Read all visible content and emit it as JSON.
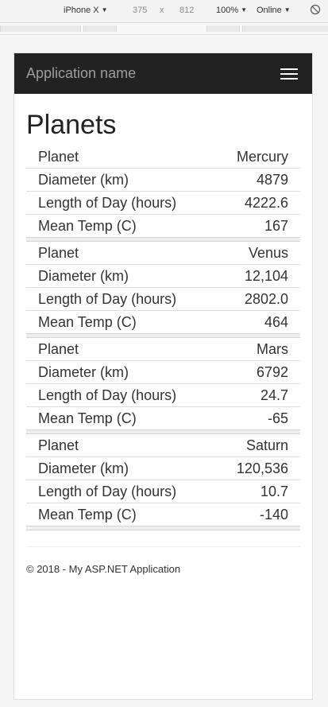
{
  "devtools": {
    "device": "iPhone X",
    "width": "375",
    "times": "x",
    "height": "812",
    "zoom": "100%",
    "network": "Online"
  },
  "app": {
    "brand": "Application name"
  },
  "page": {
    "title": "Planets"
  },
  "row_labels": {
    "planet": "Planet",
    "diameter": "Diameter (km)",
    "day": "Length of Day (hours)",
    "temp": "Mean Temp (C)"
  },
  "planets": [
    {
      "name": "Mercury",
      "diameter": "4879",
      "day": "4222.6",
      "temp": "167"
    },
    {
      "name": "Venus",
      "diameter": "12,104",
      "day": "2802.0",
      "temp": "464"
    },
    {
      "name": "Mars",
      "diameter": "6792",
      "day": "24.7",
      "temp": "-65"
    },
    {
      "name": "Saturn",
      "diameter": "120,536",
      "day": "10.7",
      "temp": "-140"
    }
  ],
  "footer": {
    "text": "© 2018 - My ASP.NET Application"
  }
}
